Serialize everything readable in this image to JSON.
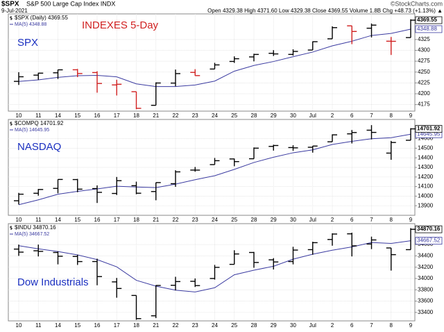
{
  "header": {
    "symbol": "$SPX",
    "description": "S&P 500 Large Cap Index INDX",
    "source": "©StockCharts.com",
    "date": "9-Jul-2021",
    "quote": "Open 4329.38 High 4371.60 Low 4329.38 Close 4369.55 Volume 1.8B Chg +48.73 (+1.13%) ▲"
  },
  "chart_data": [
    {
      "type": "ohlc",
      "legend": "$SPX (Daily) 4369.55",
      "ma_legend": "MA(5) 4348.88",
      "annotations": [
        {
          "text": "INDEXES 5-Day",
          "color": "#d02020"
        },
        {
          "text": "SPX",
          "color": "#1a2fc0"
        }
      ],
      "categories": [
        "10",
        "11",
        "14",
        "15",
        "16",
        "17",
        "18",
        "21",
        "22",
        "23",
        "24",
        "25",
        "28",
        "29",
        "30",
        "Jul",
        "2",
        "6",
        "7",
        "8",
        "9"
      ],
      "open": [
        4228.56,
        4242.9,
        4248.31,
        4255.28,
        4248.87,
        4220.37,
        4204.78,
        4173.4,
        4224.61,
        4249.27,
        4256.97,
        4274.45,
        4284.9,
        4293.21,
        4290.65,
        4300.73,
        4326.6,
        4356.46,
        4351.01,
        4321.07,
        4329.38
      ],
      "high": [
        4249.74,
        4248.38,
        4255.59,
        4257.16,
        4251.89,
        4232.29,
        4204.78,
        4226.24,
        4255.84,
        4256.6,
        4271.28,
        4286.12,
        4292.14,
        4300.52,
        4302.43,
        4320.66,
        4355.43,
        4356.46,
        4361.88,
        4330.88,
        4371.6
      ],
      "low": [
        4220.34,
        4232.25,
        4234.08,
        4238.35,
        4202.45,
        4196.05,
        4164.4,
        4173.4,
        4217.27,
        4241.43,
        4256.97,
        4271.16,
        4274.67,
        4287.04,
        4287.96,
        4300.73,
        4326.6,
        4314.37,
        4329.79,
        4289.37,
        4329.38
      ],
      "close": [
        4239.18,
        4247.44,
        4255.15,
        4246.59,
        4223.7,
        4221.86,
        4166.45,
        4224.79,
        4246.44,
        4241.84,
        4266.49,
        4280.7,
        4290.61,
        4291.8,
        4297.5,
        4319.94,
        4352.34,
        4343.54,
        4358.13,
        4320.82,
        4369.55
      ],
      "ma": [
        4228.48,
        4231.99,
        4237.72,
        4241.58,
        4242.41,
        4238.95,
        4222.75,
        4216.68,
        4216.65,
        4220.28,
        4229.2,
        4252.05,
        4265.22,
        4274.29,
        4285.42,
        4296.11,
        4310.44,
        4321.02,
        4334.29,
        4338.95,
        4348.88
      ],
      "ylim": [
        4160,
        4384
      ],
      "yticks": [
        4175,
        4200,
        4225,
        4250,
        4275,
        4300,
        4325
      ],
      "grid": true,
      "color": "#000000",
      "down_color": "#d02020",
      "ma_color": "#3a3aa0"
    },
    {
      "type": "ohlc",
      "legend": "$COMPQ 14701.92",
      "ma_legend": "MA(5) 14645.95",
      "annotations": [
        {
          "text": "NASDAQ",
          "color": "#1a2fc0"
        }
      ],
      "categories": [
        "10",
        "11",
        "14",
        "15",
        "16",
        "17",
        "18",
        "21",
        "22",
        "23",
        "24",
        "25",
        "28",
        "29",
        "30",
        "Jul",
        "2",
        "6",
        "7",
        "8",
        "9"
      ],
      "open": [
        13952,
        14030,
        14081,
        14173,
        14079,
        14028,
        14109,
        14048,
        14130,
        14272,
        14329,
        14388,
        14390,
        14519,
        14507,
        14510,
        14567,
        14650,
        14688,
        14449,
        14583
      ],
      "high": [
        14034,
        14075,
        14175,
        14180,
        14112,
        14200,
        14151,
        14142,
        14270,
        14304,
        14398,
        14392,
        14508,
        14537,
        14531,
        14524,
        14645,
        14690,
        14741,
        14576,
        14709
      ],
      "low": [
        13913,
        14005,
        14030,
        14041,
        13929,
        14012,
        14020,
        13957,
        14097,
        14255,
        14329,
        14312,
        14390,
        14475,
        14473,
        14454,
        14567,
        14550,
        14592,
        14379,
        14583
      ],
      "close": [
        14020.33,
        14069.42,
        14174.14,
        14072.86,
        14039.68,
        14161.35,
        14030.38,
        14141.48,
        14253.27,
        14271.73,
        14369.71,
        14360.39,
        14500.51,
        14528.33,
        14503.95,
        14522.38,
        14639.33,
        14663.64,
        14665.06,
        14559.79,
        14701.92
      ],
      "ma": [
        13910.57,
        13961.56,
        14020.04,
        14049.7,
        14075.29,
        14103.49,
        14095.68,
        14089.15,
        14125.23,
        14171.64,
        14213.31,
        14279.32,
        14351.12,
        14406.13,
        14452.58,
        14483.11,
        14538.9,
        14571.53,
        14598.87,
        14610.04,
        14645.95
      ],
      "ylim": [
        13800,
        14800
      ],
      "yticks": [
        13900,
        14000,
        14100,
        14200,
        14300,
        14400,
        14500,
        14600
      ],
      "grid": true,
      "color": "#000000",
      "ma_color": "#3a3aa0"
    },
    {
      "type": "ohlc",
      "legend": "$INDU 34870.16",
      "ma_legend": "MA(5) 34667.52",
      "annotations": [
        {
          "text": "Dow Industrials",
          "color": "#1a2fc0"
        }
      ],
      "categories": [
        "10",
        "11",
        "14",
        "15",
        "16",
        "17",
        "18",
        "21",
        "22",
        "23",
        "24",
        "25",
        "28",
        "29",
        "30",
        "Jul",
        "2",
        "6",
        "7",
        "8",
        "9"
      ],
      "open": [
        34520,
        34490,
        34460,
        34390,
        34300,
        33940,
        33700,
        33340,
        33880,
        33950,
        34000,
        34250,
        34460,
        34330,
        34300,
        34510,
        34690,
        34790,
        34610,
        34540,
        34510
      ],
      "high": [
        34600,
        34600,
        34480,
        34420,
        34350,
        34010,
        33700,
        33880,
        34030,
        34000,
        34240,
        34500,
        34470,
        34360,
        34560,
        34650,
        34800,
        34810,
        34740,
        34540,
        34890
      ],
      "low": [
        34400,
        34390,
        34250,
        34240,
        33880,
        33660,
        33270,
        33300,
        33790,
        33850,
        33980,
        34250,
        34190,
        34160,
        34250,
        34420,
        34580,
        34390,
        34520,
        34140,
        34510
      ],
      "close": [
        34466.24,
        34479.6,
        34393.75,
        34299.33,
        34033.67,
        33823.45,
        33290.08,
        33876.97,
        33945.58,
        33874.24,
        34196.82,
        34433.84,
        34283.27,
        34292.29,
        34502.51,
        34633.53,
        34786.35,
        34577.37,
        34681.79,
        34421.93,
        34870.16
      ],
      "ma": [
        34579.97,
        34524.61,
        34477.31,
        34417.21,
        34334.52,
        34205.96,
        33968.06,
        33864.7,
        33793.95,
        33762.06,
        33836.74,
        34065.49,
        34146.75,
        34216.09,
        34341.75,
        34429.09,
        34499.59,
        34558.41,
        34636.31,
        34620.19,
        34667.52
      ],
      "ylim": [
        33250,
        34970
      ],
      "yticks": [
        33400,
        33600,
        33800,
        34000,
        34200,
        34400,
        34600
      ],
      "grid": true,
      "color": "#000000",
      "ma_color": "#3a3aa0"
    }
  ]
}
